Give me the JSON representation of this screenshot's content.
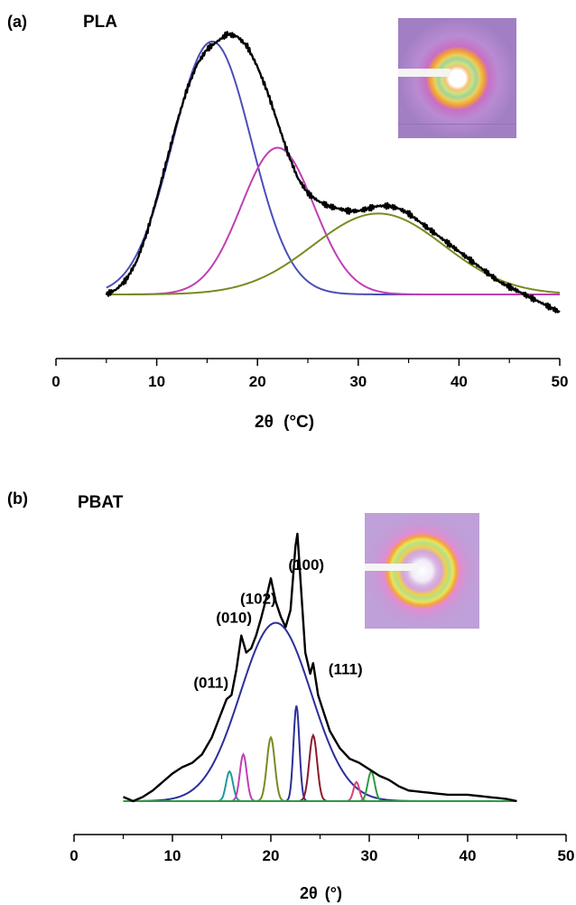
{
  "chart_data": [
    {
      "panel_label": "(a)",
      "title": "PLA",
      "type": "line",
      "xlabel": "2θ (°C)",
      "xlabel_main": "2θ",
      "xlabel_unit": "(°C)",
      "ylabel": "",
      "xlim": [
        0,
        50
      ],
      "xticks": [
        0,
        10,
        20,
        30,
        40,
        50
      ],
      "y_axis_shown": false,
      "series": [
        {
          "color": "#000000",
          "role": "measured",
          "x": [
            5,
            6,
            7,
            8,
            9,
            10,
            11,
            12,
            13,
            14,
            15,
            16,
            17,
            18,
            19,
            20,
            21,
            22,
            23,
            24,
            25,
            26,
            27,
            28,
            29,
            30,
            31,
            32,
            33,
            34,
            35,
            36,
            37,
            38,
            39,
            40,
            41,
            42,
            43,
            44,
            45,
            46,
            47,
            48,
            49,
            50
          ],
          "y": [
            0.0,
            0.02,
            0.06,
            0.13,
            0.24,
            0.38,
            0.53,
            0.68,
            0.81,
            0.91,
            0.97,
            1.0,
            1.03,
            1.02,
            0.98,
            0.9,
            0.8,
            0.68,
            0.56,
            0.46,
            0.4,
            0.37,
            0.35,
            0.34,
            0.33,
            0.33,
            0.34,
            0.35,
            0.35,
            0.34,
            0.32,
            0.29,
            0.26,
            0.23,
            0.2,
            0.17,
            0.14,
            0.11,
            0.08,
            0.05,
            0.03,
            0.01,
            -0.01,
            -0.03,
            -0.05,
            -0.07
          ]
        },
        {
          "color": "#4a4fb8",
          "role": "fit",
          "peak_x": 15.5,
          "peak_y": 1.0,
          "sigma": 3.9
        },
        {
          "color": "#c03fb4",
          "role": "fit",
          "peak_x": 22.0,
          "peak_y": 0.58,
          "sigma": 3.6
        },
        {
          "color": "#7a8a20",
          "role": "fit",
          "peak_x": 32.0,
          "peak_y": 0.32,
          "sigma": 6.5
        }
      ]
    },
    {
      "panel_label": "(b)",
      "title": "PBAT",
      "type": "line",
      "xlabel": "2θ (°)",
      "xlabel_main": "2θ",
      "xlabel_unit": "(°)",
      "ylabel": "",
      "xlim": [
        0,
        50
      ],
      "xticks": [
        0,
        10,
        20,
        30,
        40,
        50
      ],
      "y_axis_shown": false,
      "annotations": [
        {
          "text": "(011)",
          "x": 16.0
        },
        {
          "text": "(010)",
          "x": 17.0
        },
        {
          "text": "(102)",
          "x": 20.0
        },
        {
          "text": "(100)",
          "x": 22.7
        },
        {
          "text": "(111)",
          "x": 24.2
        }
      ],
      "series": [
        {
          "color": "#000000",
          "role": "measured",
          "x": [
            5,
            6,
            7,
            8,
            9,
            10,
            11,
            12,
            13,
            14,
            15,
            15.5,
            16,
            16.5,
            17,
            17.5,
            18,
            18.5,
            19,
            19.5,
            20,
            20.5,
            21,
            21.5,
            22,
            22.5,
            22.7,
            23,
            23.5,
            24,
            24.3,
            24.8,
            25.5,
            26,
            27,
            28,
            29,
            30,
            31,
            32,
            33,
            34,
            36,
            38,
            40,
            42,
            44,
            45
          ],
          "y": [
            0.02,
            0.0,
            0.02,
            0.05,
            0.09,
            0.13,
            0.16,
            0.18,
            0.22,
            0.3,
            0.42,
            0.48,
            0.5,
            0.62,
            0.78,
            0.7,
            0.72,
            0.78,
            0.86,
            0.95,
            1.05,
            0.94,
            0.87,
            0.82,
            0.9,
            1.2,
            1.26,
            1.05,
            0.7,
            0.6,
            0.65,
            0.5,
            0.4,
            0.33,
            0.25,
            0.2,
            0.18,
            0.15,
            0.12,
            0.1,
            0.07,
            0.05,
            0.04,
            0.03,
            0.03,
            0.02,
            0.01,
            0.0
          ]
        },
        {
          "color": "#2b2f99",
          "role": "fit",
          "peak_x": 20.5,
          "peak_y": 0.84,
          "sigma": 3.6
        },
        {
          "color": "#22999a",
          "role": "fit",
          "peak_x": 15.8,
          "peak_y": 0.14,
          "sigma": 0.35
        },
        {
          "color": "#c03fb4",
          "role": "fit",
          "peak_x": 17.2,
          "peak_y": 0.22,
          "sigma": 0.35
        },
        {
          "color": "#7a8a20",
          "role": "fit",
          "peak_x": 20.0,
          "peak_y": 0.3,
          "sigma": 0.4
        },
        {
          "color": "#2b2f99",
          "role": "fit",
          "peak_x": 22.6,
          "peak_y": 0.45,
          "sigma": 0.3
        },
        {
          "color": "#8b1a2a",
          "role": "fit",
          "peak_x": 24.3,
          "peak_y": 0.31,
          "sigma": 0.4
        },
        {
          "color": "#e0407a",
          "role": "fit",
          "peak_x": 28.7,
          "peak_y": 0.09,
          "sigma": 0.3
        },
        {
          "color": "#2e9a40",
          "role": "fit",
          "peak_x": 30.2,
          "peak_y": 0.14,
          "sigma": 0.35
        }
      ]
    }
  ]
}
